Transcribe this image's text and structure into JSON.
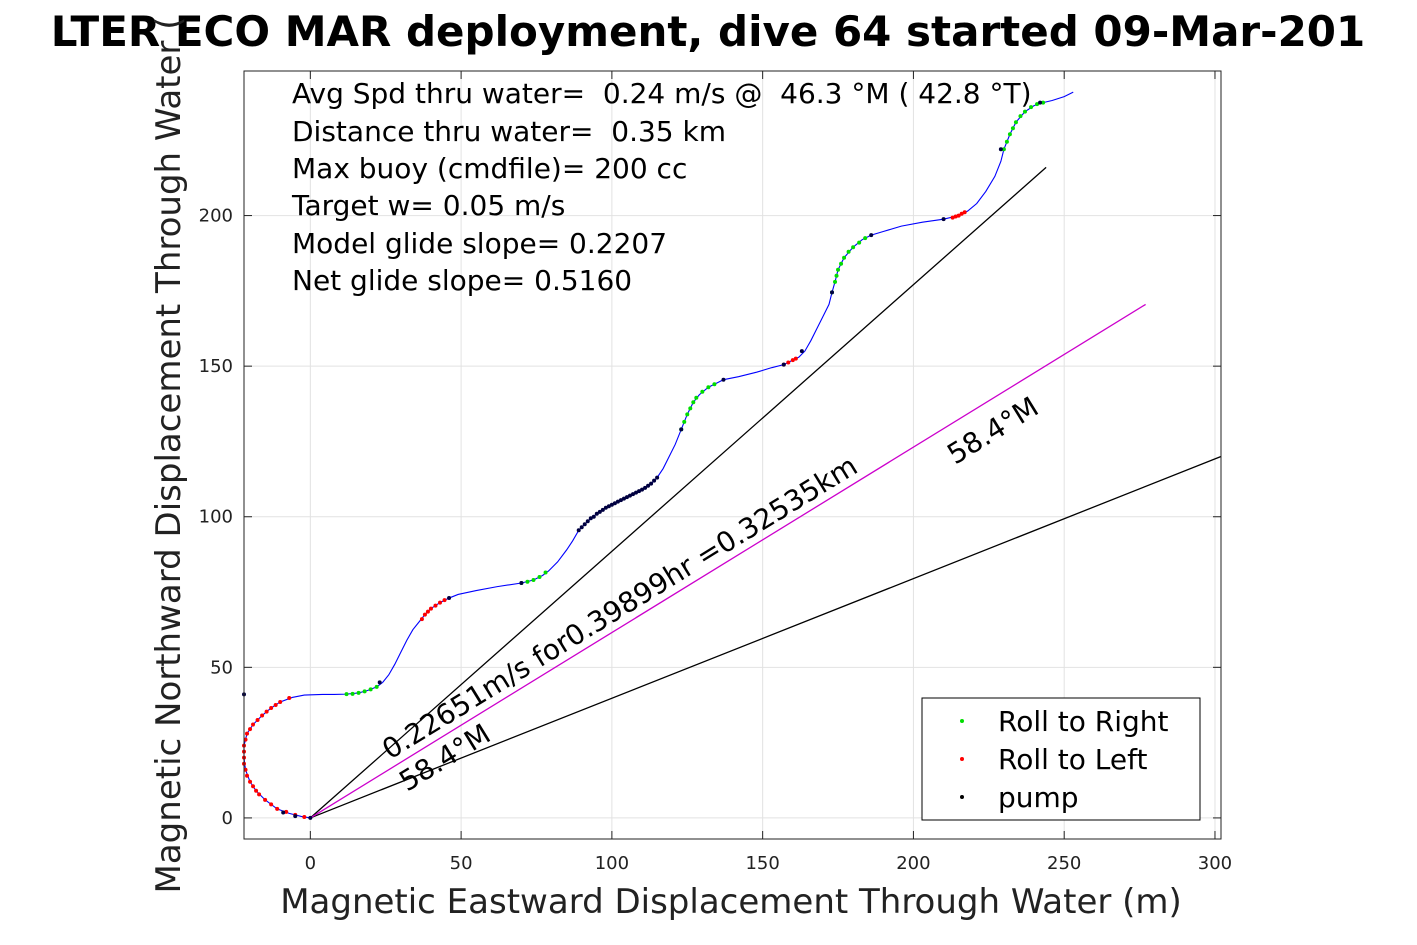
{
  "chart_data": {
    "type": "line",
    "title": "LTER ECO MAR deployment, dive 64 started 09-Mar-201",
    "xlabel": "Magnetic Eastward Displacement Through Water (m)",
    "ylabel": "Magnetic Northward Displacement Through Water (",
    "xlim": [
      -22,
      302
    ],
    "ylim": [
      -7,
      248
    ],
    "xticks": [
      0,
      50,
      100,
      150,
      200,
      250,
      300
    ],
    "yticks": [
      0,
      50,
      100,
      150,
      200
    ],
    "grid": true,
    "legend_position": "bottom-right",
    "info_lines": [
      "Avg Spd thru water=  0.24 m/s @  46.3 °M ( 42.8 °T)",
      "Distance thru water=  0.35 km",
      "Max buoy (cmdfile)= 200 cc",
      "Target w= 0.05 m/s",
      "Model glide slope= 0.2207",
      "Net glide slope= 0.5160"
    ],
    "annotations": {
      "speed_text": "0.22651m/s for0.39899hr =0.32535km",
      "heading_upper": "58.4°M",
      "heading_lower": "58.4°M"
    },
    "legend": [
      {
        "label": "Roll to Right",
        "color": "#00dd00"
      },
      {
        "label": "Roll to Left",
        "color": "#ff0000"
      },
      {
        "label": "pump",
        "color": "#000000"
      }
    ],
    "track_color": "#0000ff",
    "track": [
      [
        0,
        0
      ],
      [
        -3,
        0.5
      ],
      [
        -7,
        1.5
      ],
      [
        -11,
        3
      ],
      [
        -15,
        6
      ],
      [
        -18,
        9
      ],
      [
        -20,
        12
      ],
      [
        -21.5,
        16
      ],
      [
        -22,
        20
      ],
      [
        -22,
        24
      ],
      [
        -21,
        28
      ],
      [
        -19,
        31
      ],
      [
        -16,
        34
      ],
      [
        -13,
        36.5
      ],
      [
        -10,
        38.5
      ],
      [
        -6,
        40
      ],
      [
        -2,
        40.8
      ],
      [
        4,
        41
      ],
      [
        8,
        41
      ],
      [
        12,
        41.1
      ],
      [
        16,
        41.5
      ],
      [
        19,
        42.3
      ],
      [
        22,
        43.5
      ],
      [
        24,
        45
      ],
      [
        26,
        47.5
      ],
      [
        28,
        51
      ],
      [
        30,
        55
      ],
      [
        32,
        59
      ],
      [
        34,
        62.5
      ],
      [
        36,
        65
      ],
      [
        38,
        67.5
      ],
      [
        40,
        69.5
      ],
      [
        43,
        71.5
      ],
      [
        46,
        73
      ],
      [
        49,
        74.2
      ],
      [
        55,
        75.5
      ],
      [
        62,
        76.8
      ],
      [
        70,
        78
      ],
      [
        74,
        79
      ],
      [
        77,
        80.5
      ],
      [
        79,
        82
      ],
      [
        82,
        85
      ],
      [
        85,
        89
      ],
      [
        87,
        92
      ],
      [
        89,
        95.5
      ],
      [
        92,
        98.5
      ],
      [
        95,
        101
      ],
      [
        98,
        103
      ],
      [
        101,
        104.5
      ],
      [
        104,
        106
      ],
      [
        107,
        107.5
      ],
      [
        110,
        109
      ],
      [
        113,
        111
      ],
      [
        115,
        113
      ],
      [
        117,
        116
      ],
      [
        119,
        120
      ],
      [
        121,
        124
      ],
      [
        123,
        129
      ],
      [
        125,
        134
      ],
      [
        127,
        138
      ],
      [
        129,
        140.5
      ],
      [
        132,
        143
      ],
      [
        135,
        144.5
      ],
      [
        137,
        145.5
      ],
      [
        142,
        146.5
      ],
      [
        148,
        148
      ],
      [
        153,
        149.5
      ],
      [
        157,
        150.5
      ],
      [
        160,
        152
      ],
      [
        162,
        153
      ],
      [
        164,
        155
      ],
      [
        166,
        158.5
      ],
      [
        168,
        162.5
      ],
      [
        170,
        166.5
      ],
      [
        172,
        170.5
      ],
      [
        173,
        174.5
      ],
      [
        174,
        178
      ],
      [
        175,
        182
      ],
      [
        177,
        186
      ],
      [
        180,
        189.5
      ],
      [
        183,
        192
      ],
      [
        186,
        193.5
      ],
      [
        190,
        194.7
      ],
      [
        196,
        196.5
      ],
      [
        203,
        197.8
      ],
      [
        210,
        198.8
      ],
      [
        215,
        200
      ],
      [
        218,
        201.5
      ],
      [
        221,
        204
      ],
      [
        224,
        208
      ],
      [
        227,
        213
      ],
      [
        229,
        218
      ],
      [
        230,
        222
      ],
      [
        232,
        227
      ],
      [
        234,
        231
      ],
      [
        237,
        234.5
      ],
      [
        240,
        236.5
      ],
      [
        243,
        237.5
      ],
      [
        246,
        238.2
      ],
      [
        250,
        239.5
      ],
      [
        253,
        241
      ]
    ],
    "roll_right_points": [
      [
        12,
        41.1
      ],
      [
        14,
        41.2
      ],
      [
        16,
        41.5
      ],
      [
        18,
        42
      ],
      [
        20,
        42.7
      ],
      [
        22,
        43.5
      ],
      [
        70,
        78
      ],
      [
        72,
        78.4
      ],
      [
        74,
        79
      ],
      [
        76,
        80
      ],
      [
        78,
        81.5
      ],
      [
        123,
        129
      ],
      [
        124,
        131.5
      ],
      [
        125,
        134
      ],
      [
        126,
        136
      ],
      [
        127,
        138
      ],
      [
        128,
        139.5
      ],
      [
        130,
        141.5
      ],
      [
        132,
        143
      ],
      [
        134,
        144
      ],
      [
        173,
        174.5
      ],
      [
        174,
        178
      ],
      [
        174.5,
        180
      ],
      [
        175,
        182
      ],
      [
        176,
        184
      ],
      [
        177,
        186
      ],
      [
        178.5,
        188
      ],
      [
        180,
        189.5
      ],
      [
        182,
        191
      ],
      [
        184,
        192.5
      ],
      [
        230,
        222
      ],
      [
        231,
        224.5
      ],
      [
        232,
        227
      ],
      [
        233,
        229
      ],
      [
        234,
        231
      ],
      [
        235.5,
        233
      ],
      [
        237,
        234.5
      ],
      [
        239,
        236
      ],
      [
        241,
        237
      ],
      [
        243,
        237.5
      ]
    ],
    "roll_left_points": [
      [
        -2,
        0.3
      ],
      [
        -5,
        1
      ],
      [
        -8,
        2
      ],
      [
        -11,
        3
      ],
      [
        -13,
        4.5
      ],
      [
        -15,
        6
      ],
      [
        -17,
        7.8
      ],
      [
        -18,
        9
      ],
      [
        -19,
        10.5
      ],
      [
        -20,
        12
      ],
      [
        -21,
        14
      ],
      [
        -21.5,
        16
      ],
      [
        -22,
        18
      ],
      [
        -22,
        20
      ],
      [
        -22,
        22
      ],
      [
        -22,
        24
      ],
      [
        -21.5,
        26
      ],
      [
        -21,
        28
      ],
      [
        -20,
        29.5
      ],
      [
        -19,
        31
      ],
      [
        -17.5,
        32.5
      ],
      [
        -16,
        34
      ],
      [
        -14.5,
        35.3
      ],
      [
        -13,
        36.5
      ],
      [
        -11.5,
        37.5
      ],
      [
        -10,
        38.5
      ],
      [
        -7,
        39.8
      ],
      [
        37,
        66
      ],
      [
        38,
        67.5
      ],
      [
        39,
        68.5
      ],
      [
        40,
        69.5
      ],
      [
        41.5,
        70.5
      ],
      [
        43,
        71.5
      ],
      [
        44.5,
        72.3
      ],
      [
        157,
        150.5
      ],
      [
        158.5,
        151.2
      ],
      [
        160,
        152
      ],
      [
        161,
        152.5
      ],
      [
        213,
        199.3
      ],
      [
        214,
        199.7
      ],
      [
        215,
        200
      ],
      [
        216,
        200.6
      ],
      [
        217,
        201.1
      ]
    ],
    "pump_points": [
      [
        0,
        0
      ],
      [
        -5,
        0.6
      ],
      [
        -9,
        1.8
      ],
      [
        -27,
        38
      ],
      [
        -22,
        41
      ],
      [
        23,
        45
      ],
      [
        46,
        73
      ],
      [
        70,
        78
      ],
      [
        89,
        95.5
      ],
      [
        90,
        96.5
      ],
      [
        91,
        97.5
      ],
      [
        92,
        98.5
      ],
      [
        93,
        99.5
      ],
      [
        94,
        100
      ],
      [
        95,
        101
      ],
      [
        96,
        101.6
      ],
      [
        97,
        102.3
      ],
      [
        98,
        103
      ],
      [
        99,
        103.5
      ],
      [
        100,
        104
      ],
      [
        101,
        104.5
      ],
      [
        102,
        105
      ],
      [
        103,
        105.5
      ],
      [
        104,
        106
      ],
      [
        105,
        106.5
      ],
      [
        106,
        107
      ],
      [
        107,
        107.5
      ],
      [
        108,
        108
      ],
      [
        109,
        108.5
      ],
      [
        110,
        109
      ],
      [
        111,
        109.6
      ],
      [
        112,
        110.3
      ],
      [
        113,
        111
      ],
      [
        114,
        112
      ],
      [
        115,
        113
      ],
      [
        123,
        129
      ],
      [
        137,
        145.5
      ],
      [
        157,
        150.5
      ],
      [
        163,
        155
      ],
      [
        173,
        174.5
      ],
      [
        186,
        193.5
      ],
      [
        210,
        198.8
      ],
      [
        229,
        222
      ],
      [
        242,
        237.5
      ]
    ],
    "lines": [
      {
        "name": "",
        "points": [
          [
            0,
            0
          ],
          [
            244,
            216
          ]
        ],
        "color": "#000000"
      },
      {
        "name": "",
        "points": [
          [
            0,
            0
          ],
          [
            302,
            120
          ]
        ],
        "color": "#000000"
      },
      {
        "name": "",
        "points": [
          [
            0,
            0
          ],
          [
            277,
            170.5
          ]
        ],
        "color": "#cc00cc"
      }
    ]
  }
}
